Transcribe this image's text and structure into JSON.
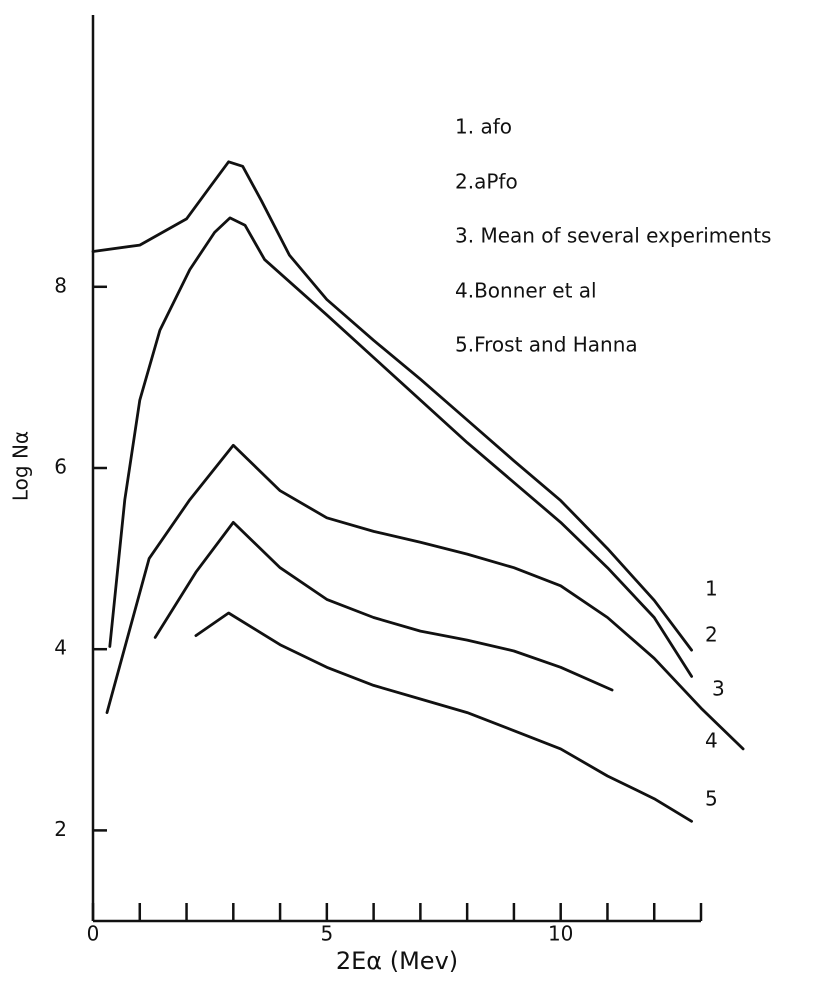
{
  "chart_data": {
    "type": "line",
    "xlabel": "2Eα (Mev)",
    "ylabel": "Log Nα",
    "xlim": [
      0,
      13
    ],
    "ylim": [
      1,
      11
    ],
    "xticks": [
      0,
      5,
      10
    ],
    "xminor_ticks": [
      1,
      2,
      3,
      4,
      6,
      7,
      8,
      9,
      11,
      12,
      13
    ],
    "yticks": [
      2,
      4,
      6,
      8
    ],
    "legend": "upper right",
    "grid": false,
    "series": [
      {
        "name": "1. afo",
        "end_label": "1",
        "color": "#111111",
        "x": [
          0,
          1,
          2,
          2.5,
          2.9,
          3.2,
          3.6,
          4.2,
          5,
          6,
          7,
          8,
          9,
          10,
          11,
          12,
          12.8
        ],
        "values": [
          8.39,
          8.46,
          8.75,
          9.1,
          9.38,
          9.33,
          8.95,
          8.35,
          7.86,
          7.41,
          6.98,
          6.53,
          6.08,
          5.64,
          5.11,
          4.54,
          3.99
        ]
      },
      {
        "name": "2.aPfo",
        "end_label": "2",
        "color": "#111111",
        "x": [
          0.36,
          0.68,
          1.0,
          1.43,
          2.07,
          2.6,
          2.93,
          3.25,
          3.67,
          5,
          6,
          8,
          10,
          11,
          12,
          12.8
        ],
        "values": [
          4.03,
          5.65,
          6.75,
          7.52,
          8.19,
          8.6,
          8.76,
          8.68,
          8.3,
          7.69,
          7.22,
          6.28,
          5.4,
          4.9,
          4.35,
          3.7
        ]
      },
      {
        "name": "3. Mean of several experiments",
        "end_label": "3",
        "color": "#111111",
        "x": [
          0.3,
          1.2,
          2.07,
          3.0,
          3.5,
          4,
          5,
          6,
          7,
          8,
          9,
          10,
          11,
          12,
          13,
          13.9
        ],
        "values": [
          3.3,
          5.0,
          5.65,
          6.25,
          6.0,
          5.75,
          5.45,
          5.3,
          5.18,
          5.05,
          4.9,
          4.7,
          4.35,
          3.9,
          3.35,
          2.9
        ]
      },
      {
        "name": "4.Bonner et al",
        "end_label": "4",
        "color": "#111111",
        "x": [
          1.33,
          2.2,
          3.0,
          4,
          5,
          6,
          7,
          8,
          9,
          10,
          11.1
        ],
        "values": [
          4.13,
          4.85,
          5.4,
          4.9,
          4.55,
          4.35,
          4.2,
          4.1,
          3.98,
          3.8,
          3.55
        ]
      },
      {
        "name": "5.Frost and Hanna",
        "end_label": "5",
        "color": "#111111",
        "x": [
          2.2,
          2.9,
          4,
          5,
          6,
          7,
          8,
          9,
          10,
          11,
          12,
          12.8
        ],
        "values": [
          4.15,
          4.4,
          4.05,
          3.8,
          3.6,
          3.45,
          3.3,
          3.1,
          2.9,
          2.6,
          2.35,
          2.1
        ]
      }
    ]
  }
}
